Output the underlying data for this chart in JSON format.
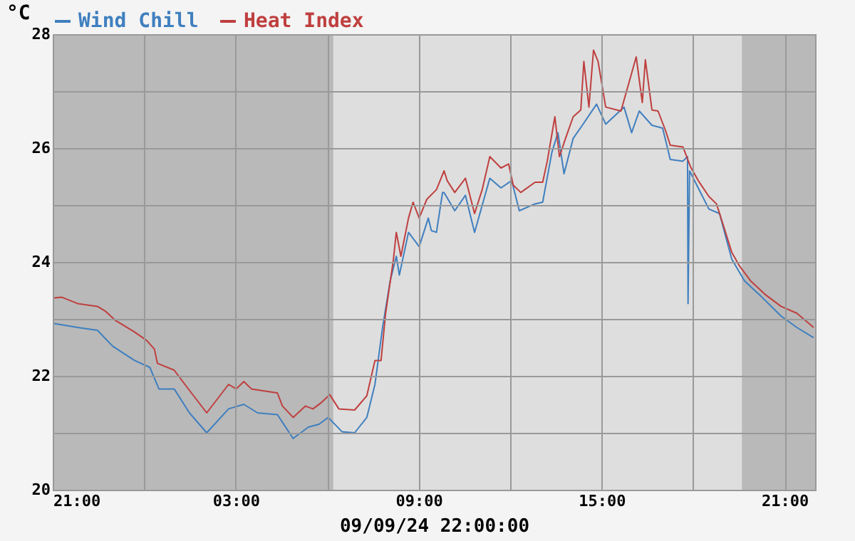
{
  "chart_data": {
    "type": "line",
    "xlabel": "09/09/24 22:00:00",
    "ylabel": "°C",
    "legend": "top",
    "grid": true,
    "xlim": [
      "--09-08T21:00",
      "--09-09T22:00"
    ],
    "xticks": [
      {
        "value": "--09-08T21:00",
        "label": "21:00"
      },
      {
        "value": "--09-09T00:00",
        "label": null
      },
      {
        "value": "--09-09T03:00",
        "label": "03:00"
      },
      {
        "value": "--09-09T06:00",
        "label": null
      },
      {
        "value": "--09-09T09:00",
        "label": "09:00"
      },
      {
        "value": "--09-09T12:00",
        "label": null
      },
      {
        "value": "--09-09T15:00",
        "label": "15:00"
      },
      {
        "value": "--09-09T18:00",
        "label": null
      },
      {
        "value": "--09-09T21:00",
        "label": "21:00"
      }
    ],
    "ylim": [
      20,
      28
    ],
    "yticks": [
      20,
      {
        "value": 21,
        "label": null
      },
      22,
      {
        "value": 23,
        "label": null
      },
      24,
      {
        "value": 25,
        "label": null
      },
      26,
      {
        "value": 27,
        "label": null
      },
      28
    ],
    "bands": [
      {
        "axis": "x",
        "from": "--09-08T21:00",
        "to": "--09-09T06:12",
        "color": "#b9b9b9"
      },
      {
        "axis": "x",
        "from": "--09-09T19:36",
        "to": "--09-09T22:00",
        "color": "#b9b9b9"
      }
    ],
    "series": [
      {
        "name": "Wind Chill",
        "color": "#3f7fbf",
        "x": [
          "--09-08T21:03",
          "--09-08T21:49",
          "--09-08T22:28",
          "--09-08T22:58",
          "--09-08T23:41",
          "--09-09T00:11",
          "--09-09T00:29",
          "--09-09T00:59",
          "--09-09T01:29",
          "--09-09T02:03",
          "--09-09T02:46",
          "--09-09T03:16",
          "--09-09T03:43",
          "--09-09T04:22",
          "--09-09T04:53",
          "--09-09T05:23",
          "--09-09T05:44",
          "--09-09T06:02",
          "--09-09T06:29",
          "--09-09T06:54",
          "--09-09T07:18",
          "--09-09T07:34",
          "--09-09T07:49",
          "--09-09T08:04",
          "--09-09T08:16",
          "--09-09T08:22",
          "--09-09T08:40",
          "--09-09T09:01",
          "--09-09T09:19",
          "--09-09T09:25",
          "--09-09T09:35",
          "--09-09T09:47",
          "--09-09T09:50",
          "--09-09T10:11",
          "--09-09T10:32",
          "--09-09T10:50",
          "--09-09T11:20",
          "--09-09T11:42",
          "--09-09T12:03",
          "--09-09T12:18",
          "--09-09T12:49",
          "--09-09T13:04",
          "--09-09T13:22",
          "--09-09T13:34",
          "--09-09T13:46",
          "--09-09T14:04",
          "--09-09T14:22",
          "--09-09T14:50",
          "--09-09T15:08",
          "--09-09T15:44",
          "--09-09T15:59",
          "--09-09T16:14",
          "--09-09T16:39",
          "--09-09T17:00",
          "--09-09T17:15",
          "--09-09T17:40",
          "--09-09T17:49",
          "--09-09T17:50",
          "--09-09T17:53",
          "--09-09T18:10",
          "--09-09T18:31",
          "--09-09T18:52",
          "--09-09T19:16",
          "--09-09T19:41",
          "--09-09T20:11",
          "--09-09T20:53",
          "--09-09T21:24",
          "--09-09T21:57"
        ],
        "values": [
          22.92,
          22.85,
          22.8,
          22.52,
          22.27,
          22.15,
          21.77,
          21.77,
          21.35,
          21.0,
          21.42,
          21.5,
          21.35,
          21.32,
          20.9,
          21.1,
          21.15,
          21.27,
          21.02,
          21.0,
          21.27,
          21.85,
          22.85,
          23.67,
          24.1,
          23.77,
          24.52,
          24.27,
          24.77,
          24.55,
          24.52,
          25.22,
          25.22,
          24.9,
          25.17,
          24.52,
          25.47,
          25.3,
          25.43,
          24.9,
          25.02,
          25.05,
          25.92,
          26.27,
          25.55,
          26.17,
          26.4,
          26.77,
          26.42,
          26.72,
          26.27,
          26.65,
          26.4,
          26.35,
          25.8,
          25.77,
          25.85,
          23.27,
          25.6,
          25.3,
          24.93,
          24.85,
          24.05,
          23.67,
          23.42,
          23.05,
          22.85,
          22.67
        ]
      },
      {
        "name": "Heat Index",
        "color": "#bf3f3f",
        "x": [
          "--09-08T21:03",
          "--09-08T21:18",
          "--09-08T21:49",
          "--09-08T22:28",
          "--09-08T22:43",
          "--09-08T23:04",
          "--09-08T23:41",
          "--09-09T00:05",
          "--09-09T00:20",
          "--09-09T00:26",
          "--09-09T00:59",
          "--09-09T01:20",
          "--09-09T02:03",
          "--09-09T02:46",
          "--09-09T03:01",
          "--09-09T03:16",
          "--09-09T03:31",
          "--09-09T04:22",
          "--09-09T04:32",
          "--09-09T04:53",
          "--09-09T05:17",
          "--09-09T05:32",
          "--09-09T05:47",
          "--09-09T06:05",
          "--09-09T06:23",
          "--09-09T06:54",
          "--09-09T07:18",
          "--09-09T07:34",
          "--09-09T07:46",
          "--09-09T07:55",
          "--09-09T08:10",
          "--09-09T08:16",
          "--09-09T08:25",
          "--09-09T08:40",
          "--09-09T08:49",
          "--09-09T09:01",
          "--09-09T09:16",
          "--09-09T09:35",
          "--09-09T09:50",
          "--09-09T09:56",
          "--09-09T10:11",
          "--09-09T10:32",
          "--09-09T10:50",
          "--09-09T11:05",
          "--09-09T11:20",
          "--09-09T11:42",
          "--09-09T11:57",
          "--09-09T12:06",
          "--09-09T12:21",
          "--09-09T12:49",
          "--09-09T13:04",
          "--09-09T13:13",
          "--09-09T13:28",
          "--09-09T13:37",
          "--09-09T13:49",
          "--09-09T14:04",
          "--09-09T14:19",
          "--09-09T14:25",
          "--09-09T14:35",
          "--09-09T14:44",
          "--09-09T14:53",
          "--09-09T15:08",
          "--09-09T15:38",
          "--09-09T16:08",
          "--09-09T16:20",
          "--09-09T16:26",
          "--09-09T16:39",
          "--09-09T16:51",
          "--09-09T17:06",
          "--09-09T17:15",
          "--09-09T17:40",
          "--09-09T17:55",
          "--09-09T18:10",
          "--09-09T18:31",
          "--09-09T18:46",
          "--09-09T19:01",
          "--09-09T19:16",
          "--09-09T19:32",
          "--09-09T19:53",
          "--09-09T20:23",
          "--09-09T20:53",
          "--09-09T21:24",
          "--09-09T21:48",
          "--09-09T21:57"
        ],
        "values": [
          23.37,
          23.38,
          23.27,
          23.22,
          23.14,
          22.97,
          22.77,
          22.62,
          22.47,
          22.22,
          22.1,
          21.85,
          21.35,
          21.85,
          21.77,
          21.9,
          21.77,
          21.7,
          21.47,
          21.27,
          21.47,
          21.42,
          21.52,
          21.67,
          21.42,
          21.4,
          21.65,
          22.27,
          22.27,
          23.1,
          24.02,
          24.52,
          24.1,
          24.77,
          25.05,
          24.77,
          25.1,
          25.27,
          25.6,
          25.43,
          25.22,
          25.47,
          24.85,
          25.27,
          25.85,
          25.65,
          25.72,
          25.35,
          25.22,
          25.4,
          25.4,
          25.77,
          26.55,
          25.85,
          26.17,
          26.55,
          26.67,
          27.52,
          26.72,
          27.72,
          27.52,
          26.72,
          26.65,
          27.6,
          26.8,
          27.55,
          26.67,
          26.65,
          26.3,
          26.05,
          26.02,
          25.67,
          25.43,
          25.15,
          25.02,
          24.6,
          24.17,
          23.92,
          23.67,
          23.42,
          23.22,
          23.1,
          22.92,
          22.85
        ]
      }
    ]
  }
}
